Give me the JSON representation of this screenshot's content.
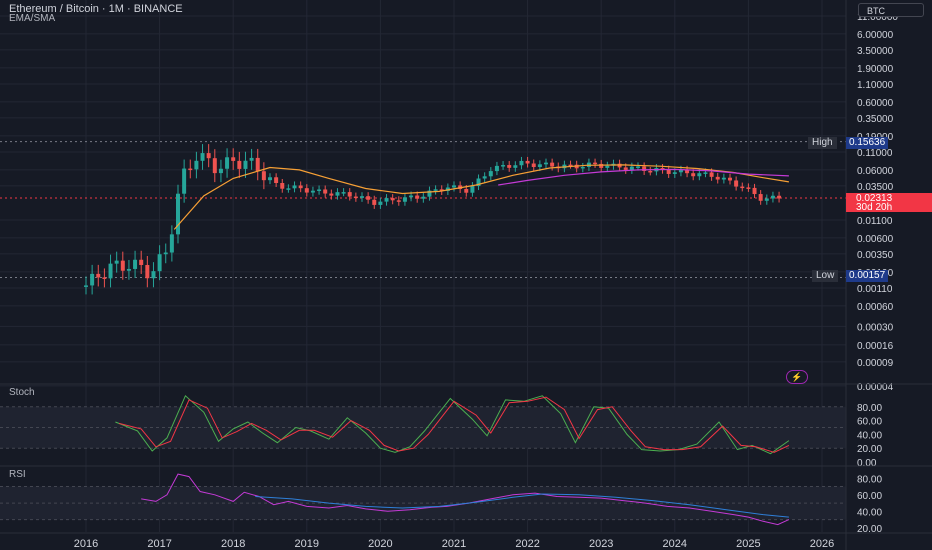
{
  "header": {
    "title": "Ethereum / Bitcoin · 1M · BINANCE",
    "indicator": "EMA/SMA"
  },
  "currency_badge": "BTC",
  "price_labels": {
    "high_label": "High",
    "high_value": "0.15636",
    "low_label": "Low",
    "low_value": "0.00157",
    "current_value": "0.02313",
    "countdown": "30d 20h"
  },
  "colors": {
    "background": "#161a25",
    "up": "#26a69a",
    "down": "#ef5350",
    "ema": "#f7a035",
    "sma": "#c43ad6",
    "stoch_k": "#4caf50",
    "stoch_d": "#f23645",
    "rsi": "#c43ad6",
    "rsi_ma": "#2f7fd8",
    "current_price": "#f23645"
  },
  "flash_icon": "lightning-icon",
  "chart_data": [
    {
      "type": "candlestick",
      "title": "Ethereum / Bitcoin · 1M · BINANCE",
      "y_scale": "log",
      "y_ticks": [
        "11.00000",
        "6.00000",
        "3.50000",
        "1.90000",
        "1.10000",
        "0.60000",
        "0.35000",
        "0.19000",
        "0.11000",
        "0.06000",
        "0.03500",
        "0.01100",
        "0.00600",
        "0.00350",
        "0.00190",
        "0.00110",
        "0.00060",
        "0.00030",
        "0.00016",
        "0.00009",
        "0.00004"
      ],
      "x_ticks": [
        "2016",
        "2017",
        "2018",
        "2019",
        "2020",
        "2021",
        "2022",
        "2023",
        "2024",
        "2025",
        "2026"
      ],
      "high": 0.15636,
      "low": 0.00157,
      "last": 0.02313,
      "series": [
        {
          "name": "EMA",
          "points": [
            [
              2017.2,
              0.008
            ],
            [
              2017.6,
              0.025
            ],
            [
              2018.0,
              0.045
            ],
            [
              2018.5,
              0.065
            ],
            [
              2018.9,
              0.06
            ],
            [
              2019.3,
              0.045
            ],
            [
              2019.8,
              0.032
            ],
            [
              2020.3,
              0.027
            ],
            [
              2020.8,
              0.029
            ],
            [
              2021.3,
              0.036
            ],
            [
              2021.8,
              0.05
            ],
            [
              2022.3,
              0.064
            ],
            [
              2022.8,
              0.07
            ],
            [
              2023.3,
              0.071
            ],
            [
              2023.8,
              0.068
            ],
            [
              2024.3,
              0.063
            ],
            [
              2024.8,
              0.055
            ],
            [
              2025.2,
              0.046
            ],
            [
              2025.55,
              0.04
            ]
          ]
        },
        {
          "name": "SMA",
          "points": [
            [
              2021.6,
              0.036
            ],
            [
              2022.0,
              0.042
            ],
            [
              2022.5,
              0.05
            ],
            [
              2023.0,
              0.056
            ],
            [
              2023.5,
              0.06
            ],
            [
              2024.0,
              0.061
            ],
            [
              2024.5,
              0.058
            ],
            [
              2025.0,
              0.052
            ],
            [
              2025.55,
              0.049
            ]
          ]
        }
      ]
    },
    {
      "type": "line",
      "title": "Stoch",
      "y_ticks": [
        "80.00",
        "60.00",
        "40.00",
        "20.00",
        "0.00"
      ],
      "ylim": [
        0,
        100
      ],
      "series": [
        {
          "name": "%K",
          "points": [
            [
              2016.4,
              58
            ],
            [
              2016.7,
              45
            ],
            [
              2016.9,
              16
            ],
            [
              2017.1,
              35
            ],
            [
              2017.35,
              96
            ],
            [
              2017.6,
              72
            ],
            [
              2017.8,
              30
            ],
            [
              2018.0,
              48
            ],
            [
              2018.2,
              58
            ],
            [
              2018.4,
              42
            ],
            [
              2018.6,
              28
            ],
            [
              2018.85,
              50
            ],
            [
              2019.05,
              45
            ],
            [
              2019.3,
              33
            ],
            [
              2019.55,
              64
            ],
            [
              2019.8,
              42
            ],
            [
              2020.0,
              20
            ],
            [
              2020.2,
              14
            ],
            [
              2020.4,
              22
            ],
            [
              2020.6,
              45
            ],
            [
              2020.95,
              92
            ],
            [
              2021.25,
              62
            ],
            [
              2021.45,
              38
            ],
            [
              2021.7,
              90
            ],
            [
              2021.95,
              88
            ],
            [
              2022.2,
              96
            ],
            [
              2022.45,
              70
            ],
            [
              2022.65,
              28
            ],
            [
              2022.9,
              80
            ],
            [
              2023.1,
              78
            ],
            [
              2023.35,
              40
            ],
            [
              2023.55,
              18
            ],
            [
              2023.8,
              16
            ],
            [
              2024.05,
              18
            ],
            [
              2024.3,
              26
            ],
            [
              2024.6,
              58
            ],
            [
              2024.85,
              18
            ],
            [
              2025.05,
              24
            ],
            [
              2025.3,
              12
            ],
            [
              2025.55,
              31
            ]
          ]
        },
        {
          "name": "%D",
          "points": [
            [
              2016.45,
              56
            ],
            [
              2016.75,
              48
            ],
            [
              2016.95,
              22
            ],
            [
              2017.15,
              30
            ],
            [
              2017.4,
              90
            ],
            [
              2017.65,
              78
            ],
            [
              2017.85,
              35
            ],
            [
              2018.05,
              44
            ],
            [
              2018.25,
              56
            ],
            [
              2018.45,
              46
            ],
            [
              2018.65,
              32
            ],
            [
              2018.9,
              46
            ],
            [
              2019.1,
              46
            ],
            [
              2019.35,
              36
            ],
            [
              2019.6,
              60
            ],
            [
              2019.85,
              46
            ],
            [
              2020.05,
              24
            ],
            [
              2020.25,
              16
            ],
            [
              2020.45,
              20
            ],
            [
              2020.65,
              40
            ],
            [
              2021.0,
              88
            ],
            [
              2021.3,
              68
            ],
            [
              2021.5,
              42
            ],
            [
              2021.75,
              86
            ],
            [
              2022.0,
              88
            ],
            [
              2022.25,
              94
            ],
            [
              2022.5,
              76
            ],
            [
              2022.7,
              34
            ],
            [
              2022.95,
              76
            ],
            [
              2023.15,
              80
            ],
            [
              2023.4,
              46
            ],
            [
              2023.6,
              22
            ],
            [
              2023.85,
              18
            ],
            [
              2024.1,
              18
            ],
            [
              2024.35,
              22
            ],
            [
              2024.65,
              52
            ],
            [
              2024.9,
              24
            ],
            [
              2025.1,
              22
            ],
            [
              2025.35,
              14
            ],
            [
              2025.55,
              24
            ]
          ]
        }
      ]
    },
    {
      "type": "line",
      "title": "RSI",
      "y_ticks": [
        "80.00",
        "60.00",
        "40.00",
        "20.00"
      ],
      "ylim": [
        15,
        90
      ],
      "series": [
        {
          "name": "RSI",
          "points": [
            [
              2016.75,
              55
            ],
            [
              2016.95,
              52
            ],
            [
              2017.1,
              60
            ],
            [
              2017.25,
              85
            ],
            [
              2017.4,
              82
            ],
            [
              2017.55,
              64
            ],
            [
              2017.75,
              60
            ],
            [
              2018.0,
              52
            ],
            [
              2018.15,
              63
            ],
            [
              2018.35,
              58
            ],
            [
              2018.55,
              48
            ],
            [
              2018.75,
              52
            ],
            [
              2019.0,
              46
            ],
            [
              2019.3,
              44
            ],
            [
              2019.55,
              47
            ],
            [
              2019.8,
              43
            ],
            [
              2020.1,
              40
            ],
            [
              2020.4,
              42
            ],
            [
              2020.7,
              45
            ],
            [
              2020.9,
              46
            ],
            [
              2021.2,
              50
            ],
            [
              2021.5,
              55
            ],
            [
              2021.8,
              60
            ],
            [
              2022.1,
              62
            ],
            [
              2022.4,
              58
            ],
            [
              2022.7,
              57
            ],
            [
              2023.0,
              56
            ],
            [
              2023.3,
              53
            ],
            [
              2023.6,
              50
            ],
            [
              2023.9,
              46
            ],
            [
              2024.2,
              44
            ],
            [
              2024.5,
              40
            ],
            [
              2024.8,
              36
            ],
            [
              2025.0,
              33
            ],
            [
              2025.2,
              28
            ],
            [
              2025.4,
              24
            ],
            [
              2025.55,
              30
            ]
          ]
        },
        {
          "name": "RSI-based MA",
          "points": [
            [
              2018.3,
              58
            ],
            [
              2018.8,
              55
            ],
            [
              2019.3,
              50
            ],
            [
              2019.8,
              46
            ],
            [
              2020.3,
              44
            ],
            [
              2020.8,
              46
            ],
            [
              2021.3,
              51
            ],
            [
              2021.8,
              57
            ],
            [
              2022.2,
              61
            ],
            [
              2022.7,
              60
            ],
            [
              2023.2,
              57
            ],
            [
              2023.7,
              53
            ],
            [
              2024.2,
              48
            ],
            [
              2024.7,
              42
            ],
            [
              2025.2,
              36
            ],
            [
              2025.55,
              33
            ]
          ]
        }
      ]
    }
  ]
}
